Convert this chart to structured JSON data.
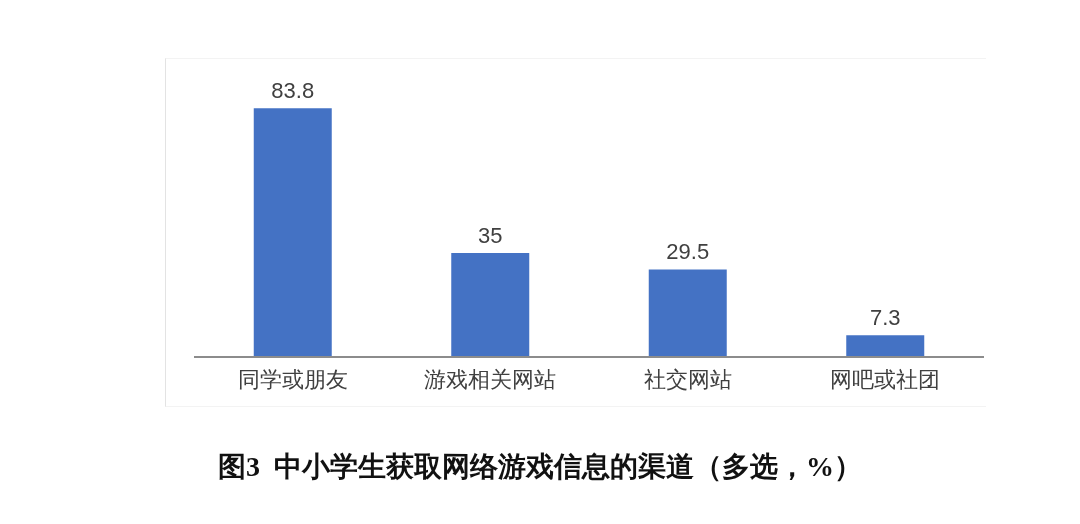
{
  "chart_data": {
    "type": "bar",
    "title": "图3  中小学生获取网络游戏信息的渠道（多选，%）",
    "categories": [
      "同学或朋友",
      "游戏相关网站",
      "社交网站",
      "网吧或社团"
    ],
    "values": [
      83.8,
      35,
      29.5,
      7.3
    ],
    "color": "#4472c4",
    "data_labels": true
  }
}
